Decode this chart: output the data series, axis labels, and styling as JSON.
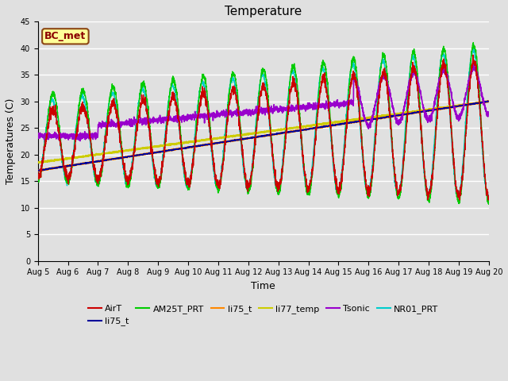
{
  "title": "Temperature",
  "xlabel": "Time",
  "ylabel": "Temperatures (C)",
  "ylim": [
    0,
    45
  ],
  "xlim": [
    0,
    15
  ],
  "x_tick_labels": [
    "Aug 5",
    "Aug 6",
    "Aug 7",
    "Aug 8",
    "Aug 9",
    "Aug 10",
    "Aug 11",
    "Aug 12",
    "Aug 13",
    "Aug 14",
    "Aug 15",
    "Aug 16",
    "Aug 17",
    "Aug 18",
    "Aug 19",
    "Aug 20"
  ],
  "annotation": "BC_met",
  "annotation_color": "#8B0000",
  "annotation_bg": "#FFFF99",
  "annotation_edge": "#8B4513",
  "legend_entries": [
    "AirT",
    "li75_t",
    "AM25T_PRT",
    "li75_t",
    "li77_temp",
    "Tsonic",
    "NR01_PRT"
  ],
  "legend_colors": [
    "#CC0000",
    "#000099",
    "#00CC00",
    "#FF8800",
    "#CCCC00",
    "#9900CC",
    "#00CCCC"
  ],
  "bg_color": "#E0E0E0",
  "grid_color": "#FFFFFF",
  "title_fontsize": 11,
  "axis_fontsize": 9,
  "tick_fontsize": 7,
  "legend_ncol": 6
}
